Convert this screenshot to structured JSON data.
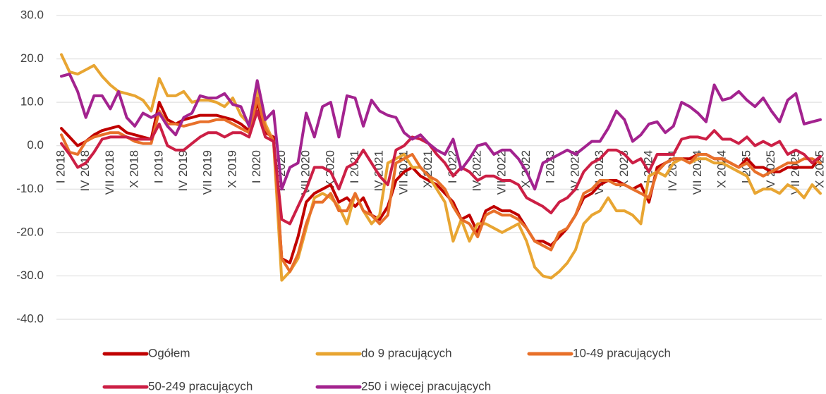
{
  "chart_data": {
    "type": "line",
    "categories": [
      "I 2018",
      null,
      null,
      "IV 2018",
      null,
      null,
      "VII 2018",
      null,
      null,
      "X 2018",
      null,
      null,
      "I 2019",
      null,
      null,
      "IV 2019",
      null,
      null,
      "VII 2019",
      null,
      null,
      "X 2019",
      null,
      null,
      "I 2020",
      null,
      null,
      "IV 2020",
      null,
      null,
      "VII 2020",
      null,
      null,
      "X 2020",
      null,
      null,
      "I 2021",
      null,
      null,
      "IV 2021",
      null,
      null,
      "VII 2021",
      null,
      null,
      "X 2021",
      null,
      null,
      "I 2022",
      null,
      null,
      "IV 2022",
      null,
      null,
      "VII 2022",
      null,
      null,
      "X 2022",
      null,
      null,
      "I 2023",
      null,
      null,
      "IV 2023",
      null,
      null,
      "VII 2023",
      null,
      null,
      "X 2023",
      null,
      null,
      "I 2024",
      null,
      null,
      "IV 2024",
      null,
      null,
      "VII 2024",
      null,
      null,
      "X 2024",
      null,
      null,
      "I 2025",
      null,
      null,
      "IV 2025",
      null,
      null,
      "VII 2025",
      null,
      null,
      "X 2025"
    ],
    "series": [
      {
        "name": "Ogółem",
        "color": "#c00000",
        "values": [
          4,
          2,
          0,
          1,
          2.5,
          3.5,
          4,
          4.5,
          3,
          2.5,
          2,
          1.5,
          10,
          6,
          5,
          6,
          6.5,
          7,
          7,
          7,
          6.5,
          6,
          5,
          3.5,
          10,
          3,
          2,
          -26,
          -27,
          -21,
          -13,
          -11,
          -10,
          -9,
          -13,
          -12,
          -14,
          -12,
          -16,
          -17,
          -14,
          -8,
          -6,
          -5,
          -7,
          -8,
          -9,
          -11,
          -13,
          -17,
          -16,
          -20,
          -15,
          -14,
          -15,
          -15,
          -16,
          -19,
          -22,
          -22,
          -23,
          -21,
          -19,
          -16,
          -12,
          -11,
          -9,
          -8,
          -8,
          -9,
          -10,
          -9,
          -13,
          -5,
          -4,
          -3,
          -3,
          -3,
          -2,
          -2,
          -3,
          -3,
          -4,
          -5,
          -3,
          -5,
          -5,
          -6,
          -6,
          -5,
          -5,
          -5,
          -5,
          -2.5
        ]
      },
      {
        "name": "do 9 pracujących",
        "color": "#e8a532",
        "values": [
          21,
          17,
          16.5,
          17.5,
          18.5,
          16,
          14,
          12.5,
          12,
          11.5,
          10.5,
          8,
          15.5,
          11.5,
          11.5,
          12.5,
          10,
          10.5,
          10.5,
          10,
          9,
          11,
          7,
          5,
          13,
          5,
          1,
          -31,
          -29,
          -26,
          -19,
          -12,
          -11,
          -12,
          -14,
          -18,
          -11,
          -15,
          -18,
          -16,
          -4,
          -3,
          -2,
          -5,
          -5,
          -7,
          -10,
          -13,
          -22,
          -17,
          -22,
          -18,
          -18,
          -19,
          -20,
          -19,
          -18,
          -22,
          -28,
          -30,
          -30.5,
          -29,
          -27,
          -24,
          -18,
          -16,
          -15,
          -12,
          -15,
          -15,
          -16,
          -18,
          -7,
          -6,
          -7,
          -4,
          -3,
          -4,
          -3,
          -3,
          -4,
          -4,
          -5,
          -6,
          -7,
          -11,
          -10,
          -10,
          -11,
          -9,
          -10,
          -12,
          -9,
          -11
        ]
      },
      {
        "name": "10-49 pracujących",
        "color": "#e8702a",
        "values": [
          2.5,
          -1.5,
          -2,
          1,
          2,
          2.5,
          3,
          3,
          2,
          1,
          0.5,
          0.5,
          8,
          5,
          5,
          4.5,
          5,
          5.5,
          5.5,
          6,
          6,
          5,
          4,
          3,
          11,
          4,
          1,
          -26,
          -29,
          -25,
          -18,
          -13,
          -13,
          -11,
          -15,
          -15,
          -11,
          -15,
          -16,
          -18,
          -16,
          -4,
          -3,
          -2,
          -5,
          -7,
          -8,
          -10,
          -14,
          -17,
          -18,
          -21,
          -16,
          -15,
          -16,
          -16,
          -17,
          -19,
          -22,
          -23,
          -24,
          -20,
          -19,
          -16,
          -11,
          -10,
          -8,
          -8,
          -9,
          -9,
          -10,
          -11,
          -12,
          -6,
          -4,
          -3,
          -3,
          -4,
          -2,
          -2,
          -3,
          -3,
          -4,
          -5,
          -4,
          -6,
          -7,
          -6,
          -5,
          -4,
          -4,
          -3,
          -3,
          -4
        ]
      },
      {
        "name": "50-249 pracujących",
        "color": "#cc1f45",
        "values": [
          0.5,
          -2,
          -5,
          -4,
          -1.5,
          1.5,
          2,
          2,
          2,
          1.5,
          1.5,
          1.5,
          5,
          0,
          -1,
          -1,
          0.5,
          2,
          3,
          3,
          2,
          3,
          3,
          2,
          8,
          2,
          1,
          -17,
          -18,
          -14,
          -10,
          -5,
          -5,
          -6,
          -10,
          -5,
          -4,
          -1,
          -4,
          -7,
          -9,
          -1,
          0,
          2,
          1.5,
          0.5,
          -2,
          -4,
          -7,
          -5,
          -6,
          -8,
          -7,
          -7,
          -8,
          -8,
          -9,
          -12,
          -13,
          -14,
          -15.5,
          -13,
          -12,
          -10,
          -6,
          -4,
          -3,
          -1,
          -1,
          -2,
          -4,
          -3,
          -6,
          -2,
          -2,
          -2,
          1.5,
          2,
          2,
          1.5,
          3.5,
          1.5,
          1.5,
          0.5,
          2,
          0,
          1,
          0,
          1,
          -2,
          -1,
          -2,
          -4,
          -2.5
        ]
      },
      {
        "name": "250 i więcej pracujących",
        "color": "#a3238f",
        "values": [
          16,
          16.5,
          12.5,
          6.5,
          11.5,
          11.5,
          8.5,
          12.5,
          6.5,
          4.5,
          7.5,
          6.5,
          7.5,
          4.5,
          2.5,
          6.5,
          7.5,
          11.5,
          11,
          11,
          12,
          9.5,
          9,
          4.5,
          15,
          6,
          8,
          -10,
          -5,
          -4,
          7.5,
          2,
          9,
          10,
          2,
          11.5,
          11,
          4.5,
          10.5,
          8,
          7,
          6.5,
          3,
          1.5,
          2.5,
          0.5,
          -1,
          -2,
          1.5,
          -5.5,
          -3,
          0,
          0.5,
          -2,
          -1,
          -1,
          -3,
          -6,
          -10,
          -4,
          -3,
          -2,
          -1,
          -2,
          -0.5,
          1,
          1,
          4,
          8,
          6,
          1,
          2.5,
          5,
          5.5,
          3,
          4.5,
          10,
          9,
          7.5,
          5.5,
          14,
          10.5,
          11,
          12.5,
          10.5,
          9,
          11,
          8,
          5.5,
          10.5,
          12,
          5,
          5.5,
          6
        ]
      }
    ],
    "ylim": [
      -40,
      30
    ],
    "yticks": [
      {
        "value": -40,
        "label": "-40.0"
      },
      {
        "value": -30,
        "label": "-30.0"
      },
      {
        "value": -20,
        "label": "-20.0"
      },
      {
        "value": -10,
        "label": "-10.0"
      },
      {
        "value": 0,
        "label": "0.0"
      },
      {
        "value": 10,
        "label": "10.0"
      },
      {
        "value": 20,
        "label": "20.0"
      },
      {
        "value": 30,
        "label": "30.0"
      }
    ],
    "grid": true,
    "legend": "bottom"
  }
}
